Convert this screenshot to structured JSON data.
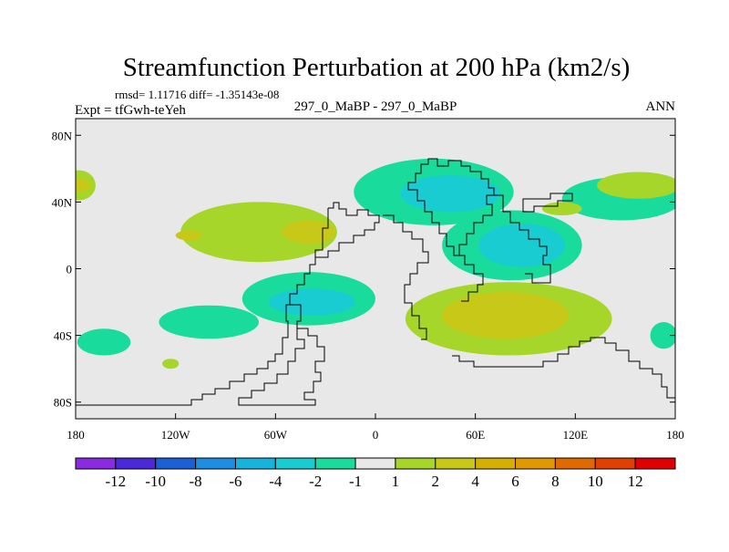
{
  "chart_data": {
    "type": "heatmap",
    "title": "Streamfunction Perturbation at 200 hPa (km2/s)",
    "stats_line": "rmsd= 1.11716  diff= -1.35143e-08",
    "left_label": "Expt = tfGwh-teYeh",
    "center_label": "297_0_MaBP - 297_0_MaBP",
    "right_label": "ANN",
    "x_ticks": [
      {
        "value": -180,
        "label": "180"
      },
      {
        "value": -120,
        "label": "120W"
      },
      {
        "value": -60,
        "label": "60W"
      },
      {
        "value": 0,
        "label": "0"
      },
      {
        "value": 60,
        "label": "60E"
      },
      {
        "value": 120,
        "label": "120E"
      },
      {
        "value": 180,
        "label": "180"
      }
    ],
    "y_ticks": [
      {
        "value": 80,
        "label": "80N"
      },
      {
        "value": 40,
        "label": "40N"
      },
      {
        "value": 0,
        "label": "0"
      },
      {
        "value": -40,
        "label": "40S"
      },
      {
        "value": -80,
        "label": "80S"
      }
    ],
    "xlim": [
      -180,
      180
    ],
    "ylim": [
      -90,
      90
    ],
    "colorbar": {
      "colors": [
        "#8a2be2",
        "#4b28d9",
        "#1c5fd6",
        "#1e8fe0",
        "#16b4dc",
        "#19ccd2",
        "#19dc9c",
        "#e8e8e8",
        "#a6d62a",
        "#c8c818",
        "#d4b000",
        "#e09a00",
        "#e06a00",
        "#e04000",
        "#e00000"
      ],
      "labels": [
        "-12",
        "-10",
        "-8",
        "-6",
        "-4",
        "-2",
        "-1",
        "1",
        "2",
        "4",
        "6",
        "8",
        "10",
        "12"
      ]
    },
    "levels": [
      {
        "name": "-2 to -1",
        "color": "#19dc9c"
      },
      {
        "name": "-4 to -2",
        "color": "#19ccd2"
      },
      {
        "name": "1 to 2",
        "color": "#a6d62a"
      },
      {
        "name": "2 to 4",
        "color": "#c8c818"
      }
    ],
    "anomalies": [
      {
        "lon": -178,
        "lat": 50,
        "rx": 10,
        "ry": 9,
        "level": "1 to 2"
      },
      {
        "lon": -178,
        "lat": 50,
        "rx": 7,
        "ry": 4,
        "level": "2 to 4"
      },
      {
        "lon": -178,
        "lat": 50,
        "rx": 4,
        "ry": 2,
        "level": "2 to 4"
      },
      {
        "lon": -70,
        "lat": 22,
        "rx": 47,
        "ry": 18,
        "level": "1 to 2"
      },
      {
        "lon": -40,
        "lat": 22,
        "rx": 16,
        "ry": 7,
        "level": "2 to 4"
      },
      {
        "lon": -112,
        "lat": 20,
        "rx": 8,
        "ry": 3,
        "level": "2 to 4"
      },
      {
        "lon": 35,
        "lat": 46,
        "rx": 48,
        "ry": 20,
        "level": "-2 to -1"
      },
      {
        "lon": 45,
        "lat": 45,
        "rx": 30,
        "ry": 11,
        "level": "-4 to -2"
      },
      {
        "lon": 148,
        "lat": 42,
        "rx": 36,
        "ry": 13,
        "level": "-2 to -1"
      },
      {
        "lon": 158,
        "lat": 50,
        "rx": 25,
        "ry": 8,
        "level": "1 to 2"
      },
      {
        "lon": 82,
        "lat": 14,
        "rx": 42,
        "ry": 21,
        "level": "-2 to -1"
      },
      {
        "lon": 88,
        "lat": 14,
        "rx": 26,
        "ry": 13,
        "level": "-4 to -2"
      },
      {
        "lon": 112,
        "lat": 36,
        "rx": 12,
        "ry": 4,
        "level": "1 to 2"
      },
      {
        "lon": -40,
        "lat": -18,
        "rx": 40,
        "ry": 16,
        "level": "-2 to -1"
      },
      {
        "lon": -38,
        "lat": -20,
        "rx": 26,
        "ry": 8,
        "level": "-4 to -2"
      },
      {
        "lon": 80,
        "lat": -30,
        "rx": 62,
        "ry": 22,
        "level": "1 to 2"
      },
      {
        "lon": 78,
        "lat": -28,
        "rx": 38,
        "ry": 14,
        "level": "2 to 4"
      },
      {
        "lon": -100,
        "lat": -32,
        "rx": 30,
        "ry": 10,
        "level": "-2 to -1"
      },
      {
        "lon": -163,
        "lat": -44,
        "rx": 16,
        "ry": 8,
        "level": "-2 to -1"
      },
      {
        "lon": 173,
        "lat": -40,
        "rx": 8,
        "ry": 8,
        "level": "-2 to -1"
      },
      {
        "lon": -123,
        "lat": -57,
        "rx": 5,
        "ry": 3,
        "level": "1 to 2"
      }
    ]
  }
}
